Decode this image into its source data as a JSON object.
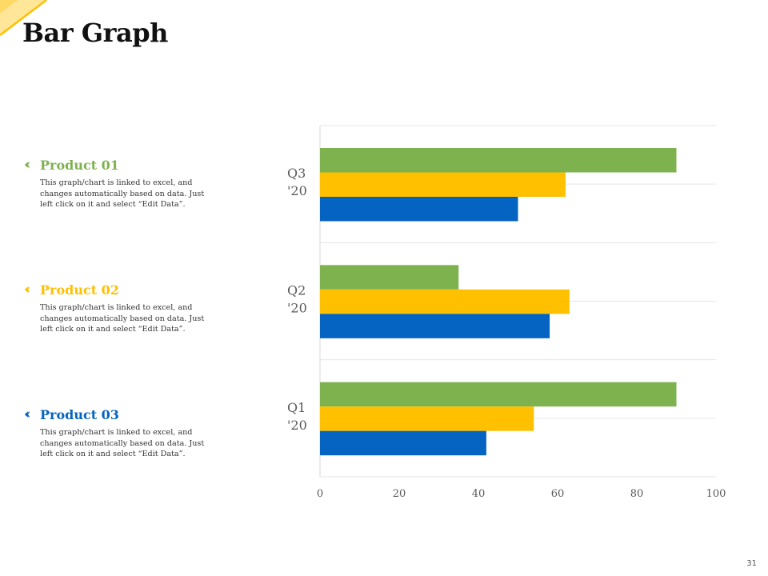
{
  "title": "Bar Graph",
  "page_number": "31",
  "colors": {
    "accent": "#FFC000",
    "green": "#7EB24F",
    "yellow": "#FFC000",
    "blue": "#0563C1"
  },
  "products": [
    {
      "name": "Product 01",
      "color": "#7EB24F",
      "icon": "double-chevron-left-icon",
      "description": "This graph/chart is linked to excel, and changes automatically based on data. Just left click on it and select “Edit Data”."
    },
    {
      "name": "Product 02",
      "color": "#FFC000",
      "icon": "double-chevron-left-icon",
      "description": "This graph/chart is linked to excel, and changes automatically based on data. Just left click on it and select “Edit Data”."
    },
    {
      "name": "Product 03",
      "color": "#0563C1",
      "icon": "double-chevron-left-icon",
      "description": "This graph/chart is linked to excel, and changes automatically based on data. Just left click on it and select “Edit Data”."
    }
  ],
  "chart_data": {
    "type": "bar",
    "orientation": "horizontal",
    "title": "",
    "categories": [
      "Q1 '20",
      "Q2 '20",
      "Q3 '20"
    ],
    "series": [
      {
        "name": "Product 01",
        "color": "#7EB24F",
        "values": [
          90,
          35,
          90
        ]
      },
      {
        "name": "Product 02",
        "color": "#FFC000",
        "values": [
          54,
          63,
          62
        ]
      },
      {
        "name": "Product 03",
        "color": "#0563C1",
        "values": [
          42,
          58,
          50
        ]
      }
    ],
    "xlim": [
      0,
      100
    ],
    "xticks": [
      "0",
      "20",
      "40",
      "60",
      "80",
      "100"
    ],
    "xlabel": "",
    "ylabel": "",
    "grid": true,
    "legend": "none"
  }
}
